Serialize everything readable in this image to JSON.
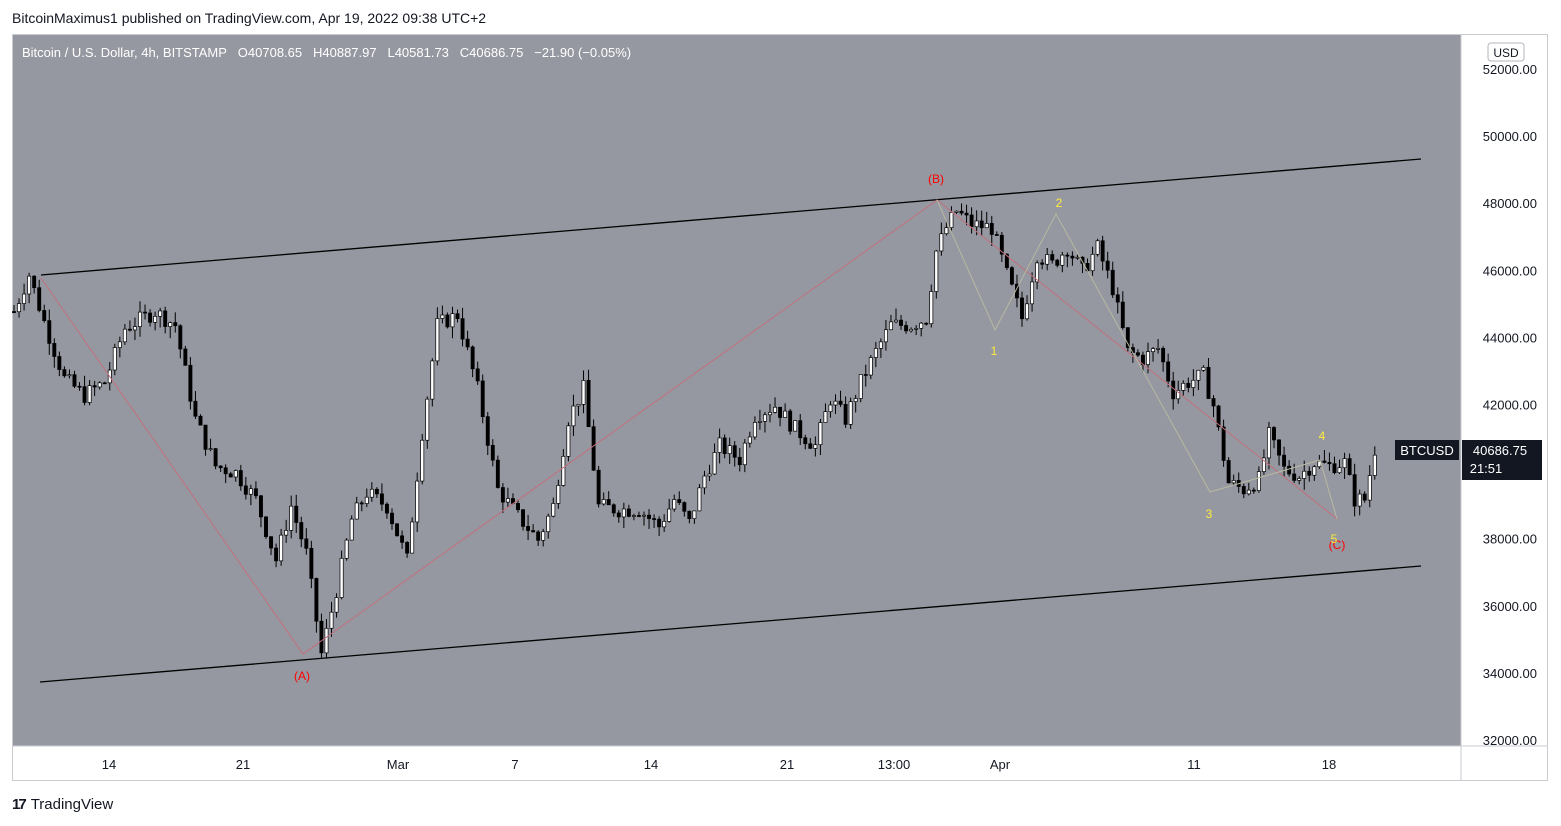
{
  "publisher_line": "BitcoinMaximus1 published on TradingView.com, Apr 19, 2022 09:38 UTC+2",
  "legend": {
    "symbol": "Bitcoin / U.S. Dollar, 4h, BITSTAMP",
    "o_label": "O",
    "o": "40708.65",
    "h_label": "H",
    "h": "40887.97",
    "l_label": "L",
    "l": "40581.73",
    "c_label": "C",
    "c": "40686.75",
    "change": "−21.90 (−0.05%)"
  },
  "currency_button": "USD",
  "price_tag": {
    "symbol": "BTCUSD",
    "price": "40686.75",
    "countdown": "21:51"
  },
  "colors": {
    "background": "#9598a1",
    "candle": "#000000",
    "candle_body_up": "#ffffff",
    "wave_abc": "#ff0000",
    "wave_12345": "#ffeb3b",
    "channel": "#000000"
  },
  "chart_data": {
    "type": "candlestick",
    "y_ticks": [
      "52000.00",
      "50000.00",
      "48000.00",
      "46000.00",
      "44000.00",
      "42000.00",
      "40000.00",
      "38000.00",
      "36000.00",
      "34000.00",
      "32000.00"
    ],
    "x_ticks": [
      "14",
      "21",
      "Mar",
      "7",
      "14",
      "21",
      "13:00",
      "Apr",
      "11",
      "18"
    ],
    "ylim": [
      32000,
      52000
    ],
    "wave_labels_abc": [
      "(A)",
      "(B)",
      "(C)"
    ],
    "wave_labels_12345": [
      "1",
      "2",
      "3",
      "4",
      "5"
    ],
    "path_points": [
      {
        "i": 0,
        "v": 44800
      },
      {
        "i": 3,
        "v": 45900
      },
      {
        "i": 6,
        "v": 44500
      },
      {
        "i": 10,
        "v": 42800
      },
      {
        "i": 14,
        "v": 42300
      },
      {
        "i": 18,
        "v": 42700
      },
      {
        "i": 22,
        "v": 44300
      },
      {
        "i": 28,
        "v": 44800
      },
      {
        "i": 32,
        "v": 44400
      },
      {
        "i": 36,
        "v": 41600
      },
      {
        "i": 40,
        "v": 40200
      },
      {
        "i": 44,
        "v": 40000
      },
      {
        "i": 48,
        "v": 39200
      },
      {
        "i": 52,
        "v": 37400
      },
      {
        "i": 55,
        "v": 39000
      },
      {
        "i": 58,
        "v": 37600
      },
      {
        "i": 61,
        "v": 34600
      },
      {
        "i": 64,
        "v": 36500
      },
      {
        "i": 67,
        "v": 38600
      },
      {
        "i": 70,
        "v": 39400
      },
      {
        "i": 74,
        "v": 39000
      },
      {
        "i": 78,
        "v": 37400
      },
      {
        "i": 81,
        "v": 41200
      },
      {
        "i": 84,
        "v": 44400
      },
      {
        "i": 88,
        "v": 44700
      },
      {
        "i": 92,
        "v": 42500
      },
      {
        "i": 96,
        "v": 39500
      },
      {
        "i": 100,
        "v": 38700
      },
      {
        "i": 104,
        "v": 38000
      },
      {
        "i": 107,
        "v": 39000
      },
      {
        "i": 110,
        "v": 41600
      },
      {
        "i": 113,
        "v": 42500
      },
      {
        "i": 116,
        "v": 39000
      },
      {
        "i": 120,
        "v": 38900
      },
      {
        "i": 124,
        "v": 38900
      },
      {
        "i": 128,
        "v": 38400
      },
      {
        "i": 131,
        "v": 39200
      },
      {
        "i": 134,
        "v": 38500
      },
      {
        "i": 137,
        "v": 39900
      },
      {
        "i": 140,
        "v": 40800
      },
      {
        "i": 144,
        "v": 40400
      },
      {
        "i": 147,
        "v": 41700
      },
      {
        "i": 151,
        "v": 42000
      },
      {
        "i": 155,
        "v": 41300
      },
      {
        "i": 159,
        "v": 40800
      },
      {
        "i": 162,
        "v": 42200
      },
      {
        "i": 165,
        "v": 41600
      },
      {
        "i": 168,
        "v": 42700
      },
      {
        "i": 171,
        "v": 43600
      },
      {
        "i": 174,
        "v": 44400
      },
      {
        "i": 178,
        "v": 44400
      },
      {
        "i": 181,
        "v": 44600
      },
      {
        "i": 183,
        "v": 46600
      },
      {
        "i": 185,
        "v": 47300
      },
      {
        "i": 187,
        "v": 47800
      },
      {
        "i": 190,
        "v": 47400
      },
      {
        "i": 194,
        "v": 47300
      },
      {
        "i": 197,
        "v": 45900
      },
      {
        "i": 200,
        "v": 44600
      },
      {
        "i": 203,
        "v": 46500
      },
      {
        "i": 206,
        "v": 46200
      },
      {
        "i": 209,
        "v": 46700
      },
      {
        "i": 212,
        "v": 46000
      },
      {
        "i": 215,
        "v": 46700
      },
      {
        "i": 218,
        "v": 45500
      },
      {
        "i": 221,
        "v": 43600
      },
      {
        "i": 224,
        "v": 43400
      },
      {
        "i": 227,
        "v": 43700
      },
      {
        "i": 230,
        "v": 42400
      },
      {
        "i": 233,
        "v": 42700
      },
      {
        "i": 236,
        "v": 42900
      },
      {
        "i": 238,
        "v": 42000
      },
      {
        "i": 241,
        "v": 39700
      },
      {
        "i": 244,
        "v": 39500
      },
      {
        "i": 247,
        "v": 39800
      },
      {
        "i": 249,
        "v": 41100
      },
      {
        "i": 252,
        "v": 40100
      },
      {
        "i": 255,
        "v": 39900
      },
      {
        "i": 258,
        "v": 40300
      },
      {
        "i": 261,
        "v": 40200
      },
      {
        "i": 264,
        "v": 40300
      },
      {
        "i": 266,
        "v": 39200
      },
      {
        "i": 268,
        "v": 39200
      },
      {
        "i": 270,
        "v": 40700
      }
    ]
  }
}
